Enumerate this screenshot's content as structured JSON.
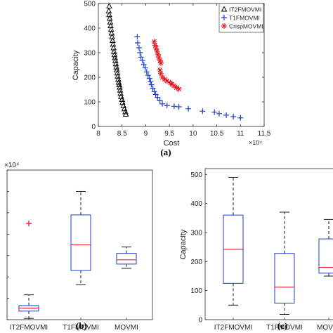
{
  "captions": {
    "a": "(a)",
    "b": "(b)",
    "c": "(c)"
  },
  "chart_data": [
    {
      "id": "a",
      "type": "scatter",
      "xlabel": "Cost",
      "ylabel": "Capacity",
      "x_multiplier": "×10⁴",
      "xlim": [
        8,
        11.5
      ],
      "ylim": [
        0,
        500
      ],
      "xticks": [
        "8",
        "8.5",
        "9",
        "9.5",
        "10",
        "10.5",
        "11",
        "11.5"
      ],
      "yticks": [
        "0",
        "100",
        "200",
        "300",
        "400",
        "500"
      ],
      "legend_position": "top-right",
      "series": [
        {
          "name": "IT2FMOVMI",
          "marker": "triangle",
          "color": "#000000",
          "points": [
            [
              8.23,
              490
            ],
            [
              8.22,
              470
            ],
            [
              8.23,
              455
            ],
            [
              8.24,
              440
            ],
            [
              8.25,
              425
            ],
            [
              8.26,
              410
            ],
            [
              8.27,
              395
            ],
            [
              8.28,
              380
            ],
            [
              8.29,
              365
            ],
            [
              8.3,
              350
            ],
            [
              8.31,
              335
            ],
            [
              8.32,
              320
            ],
            [
              8.33,
              305
            ],
            [
              8.34,
              292
            ],
            [
              8.35,
              280
            ],
            [
              8.36,
              268
            ],
            [
              8.37,
              255
            ],
            [
              8.38,
              242
            ],
            [
              8.39,
              230
            ],
            [
              8.4,
              218
            ],
            [
              8.41,
              205
            ],
            [
              8.42,
              192
            ],
            [
              8.43,
              180
            ],
            [
              8.44,
              170
            ],
            [
              8.45,
              160
            ],
            [
              8.46,
              148
            ],
            [
              8.47,
              135
            ],
            [
              8.48,
              122
            ],
            [
              8.5,
              110
            ],
            [
              8.51,
              98
            ],
            [
              8.53,
              85
            ],
            [
              8.55,
              72
            ],
            [
              8.57,
              60
            ],
            [
              8.58,
              50
            ]
          ]
        },
        {
          "name": "T1FMOVMI",
          "marker": "plus",
          "color": "#1f3ec9",
          "points": [
            [
              8.82,
              365
            ],
            [
              8.83,
              340
            ],
            [
              8.86,
              320
            ],
            [
              8.88,
              300
            ],
            [
              8.9,
              282
            ],
            [
              8.93,
              268
            ],
            [
              8.96,
              252
            ],
            [
              8.99,
              238
            ],
            [
              9.02,
              222
            ],
            [
              9.05,
              208
            ],
            [
              9.08,
              195
            ],
            [
              9.1,
              182
            ],
            [
              9.12,
              170
            ],
            [
              9.15,
              155
            ],
            [
              9.18,
              142
            ],
            [
              9.21,
              130
            ],
            [
              9.25,
              118
            ],
            [
              9.3,
              105
            ],
            [
              9.35,
              92
            ],
            [
              9.45,
              85
            ],
            [
              9.6,
              82
            ],
            [
              9.7,
              80
            ],
            [
              9.9,
              72
            ],
            [
              10.2,
              62
            ],
            [
              10.45,
              58
            ],
            [
              10.55,
              52
            ],
            [
              10.7,
              46
            ],
            [
              10.85,
              40
            ],
            [
              11.0,
              35
            ]
          ]
        },
        {
          "name": "CrispMOVMI",
          "marker": "star",
          "color": "#e8202a",
          "points": [
            [
              9.18,
              345
            ],
            [
              9.2,
              330
            ],
            [
              9.22,
              318
            ],
            [
              9.24,
              305
            ],
            [
              9.26,
              292
            ],
            [
              9.28,
              280
            ],
            [
              9.3,
              268
            ],
            [
              9.32,
              258
            ],
            [
              9.3,
              230
            ],
            [
              9.32,
              215
            ],
            [
              9.35,
              200
            ],
            [
              9.4,
              192
            ],
            [
              9.45,
              185
            ],
            [
              9.52,
              178
            ],
            [
              9.55,
              172
            ],
            [
              9.6,
              165
            ],
            [
              9.65,
              158
            ],
            [
              9.7,
              152
            ]
          ]
        }
      ]
    },
    {
      "id": "b",
      "type": "box",
      "y_multiplier": "×10⁴",
      "categories": [
        "IT2FMOVMI",
        "T1FMOVMI",
        "MOVMI"
      ],
      "ylim": [
        8,
        11.5
      ],
      "boxes": [
        {
          "whisker_low": 8.03,
          "q1": 8.2,
          "median": 8.27,
          "q3": 8.33,
          "whisker_high": 8.58,
          "outliers": [
            10.25
          ]
        },
        {
          "whisker_low": 8.82,
          "q1": 9.15,
          "median": 9.75,
          "q3": 10.45,
          "whisker_high": 11.0,
          "outliers": []
        },
        {
          "whisker_low": 9.2,
          "q1": 9.3,
          "median": 9.4,
          "q3": 9.55,
          "whisker_high": 9.7,
          "outliers": []
        }
      ]
    },
    {
      "id": "c",
      "type": "box",
      "ylabel": "Capacity",
      "categories": [
        "IT2FMOVMI",
        "T1FMOVMI",
        "MOVMI"
      ],
      "ylim": [
        0,
        520
      ],
      "yticks": [
        "0",
        "100",
        "200",
        "300",
        "400",
        "500"
      ],
      "boxes": [
        {
          "whisker_low": 50,
          "q1": 125,
          "median": 242,
          "q3": 360,
          "whisker_high": 490,
          "outliers": []
        },
        {
          "whisker_low": 18,
          "q1": 57,
          "median": 112,
          "q3": 228,
          "whisker_high": 370,
          "outliers": []
        },
        {
          "whisker_low": 150,
          "q1": 160,
          "median": 180,
          "q3": 278,
          "whisker_high": 345,
          "outliers": []
        }
      ]
    }
  ]
}
